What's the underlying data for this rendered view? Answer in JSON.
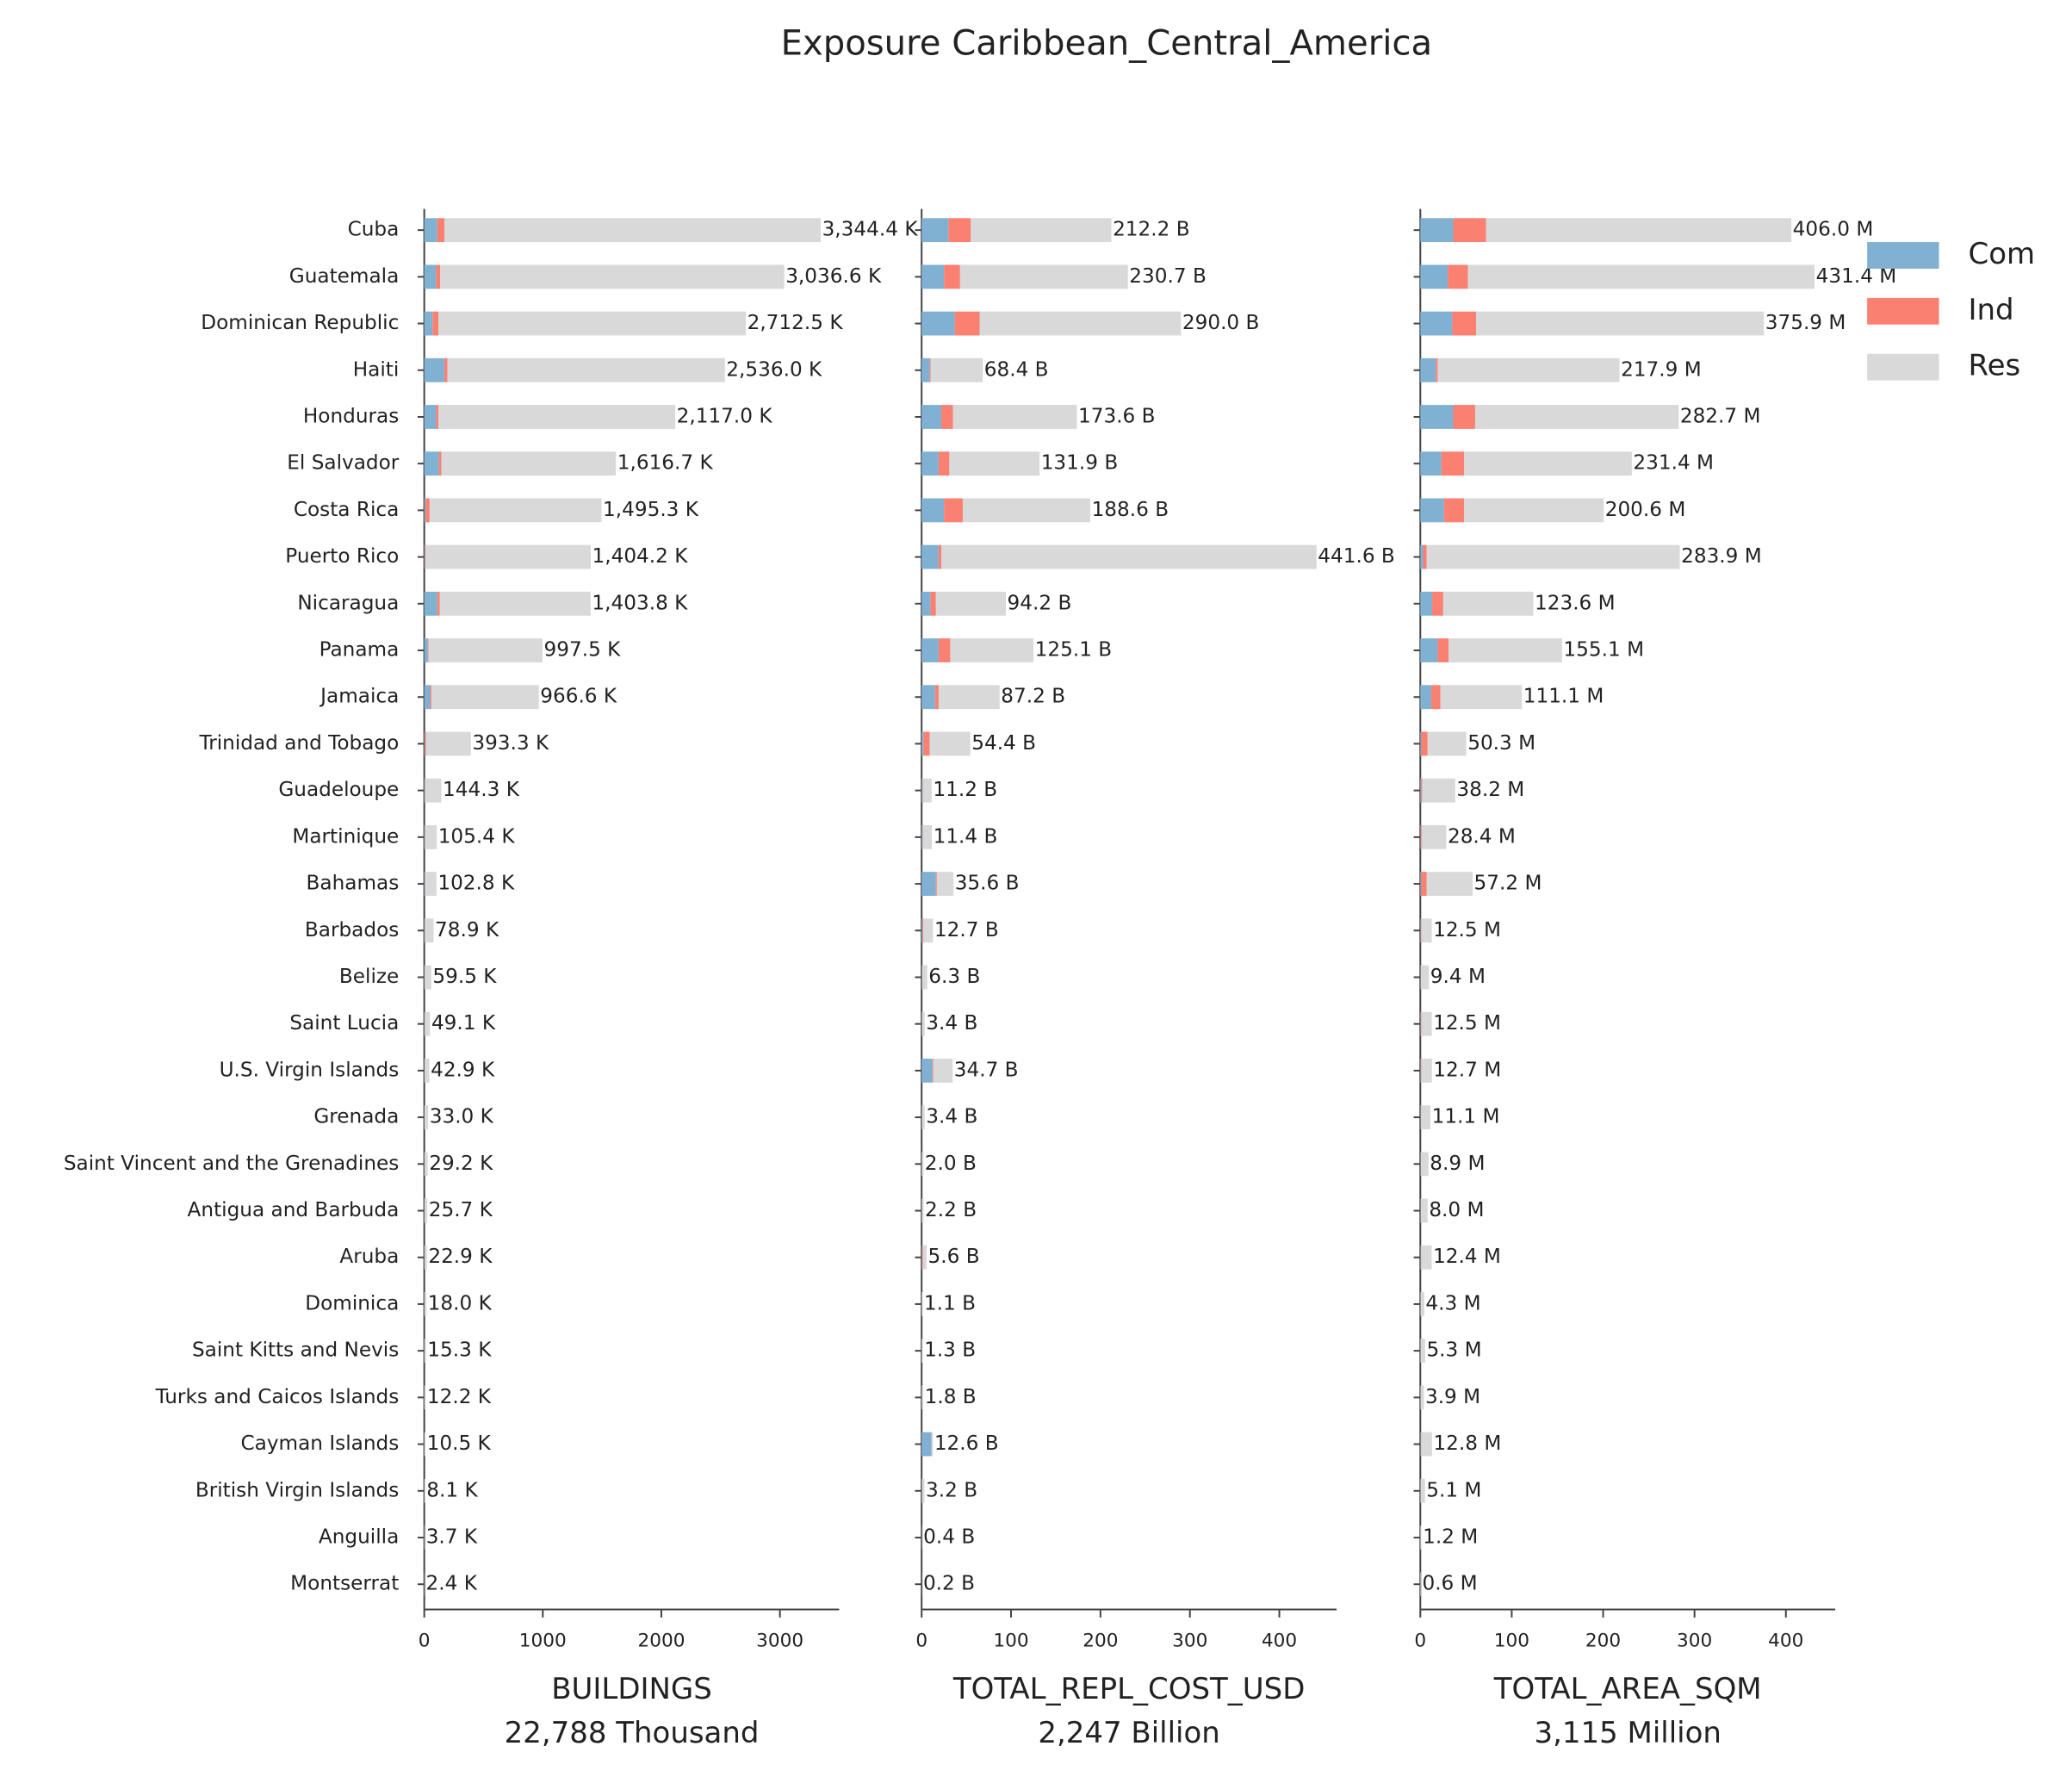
{
  "chart_data": {
    "type": "bar",
    "orientation": "horizontal",
    "stacked": true,
    "title": "Exposure Caribbean_Central_America",
    "categories": [
      "Cuba",
      "Guatemala",
      "Dominican Republic",
      "Haiti",
      "Honduras",
      "El Salvador",
      "Costa Rica",
      "Puerto Rico",
      "Nicaragua",
      "Panama",
      "Jamaica",
      "Trinidad and Tobago",
      "Guadeloupe",
      "Martinique",
      "Bahamas",
      "Barbados",
      "Belize",
      "Saint Lucia",
      "U.S. Virgin Islands",
      "Grenada",
      "Saint Vincent and the Grenadines",
      "Antigua and Barbuda",
      "Aruba",
      "Dominica",
      "Saint Kitts and Nevis",
      "Turks and Caicos Islands",
      "Cayman Islands",
      "British Virgin Islands",
      "Anguilla",
      "Montserrat"
    ],
    "series": [
      {
        "name": "Com",
        "color": "#80b1d3"
      },
      {
        "name": "Ind",
        "color": "#fa8072"
      },
      {
        "name": "Res",
        "color": "#d9d9d9"
      }
    ],
    "legend": "upper right",
    "panels": [
      {
        "xlabel": "BUILDINGS",
        "subtitle": "22,788 Thousand",
        "xlim": [
          0,
          3500
        ],
        "xticks": [
          0,
          1000,
          2000,
          3000
        ],
        "values": [
          [
            110,
            100,
            70,
            170,
            100,
            125,
            10,
            5,
            110,
            30,
            50,
            5,
            3,
            3,
            5,
            3,
            2,
            2,
            2,
            1,
            1,
            1,
            1,
            1,
            1,
            1,
            1,
            0.5,
            0.2,
            0.1
          ],
          [
            60,
            35,
            50,
            25,
            20,
            20,
            35,
            5,
            20,
            5,
            10,
            10,
            2,
            2,
            2,
            1,
            1,
            1,
            1,
            1,
            1,
            1,
            1,
            0.5,
            0.5,
            0.3,
            0.2,
            0.2,
            0.1,
            0.1
          ],
          [
            3174.4,
            2901.6,
            2592.5,
            2341,
            1997,
            1471.7,
            1450.3,
            1394.2,
            1273.8,
            962.5,
            906.6,
            378.3,
            139.3,
            100.4,
            95.8,
            74.9,
            56.5,
            46.1,
            39.9,
            31,
            27.2,
            23.7,
            20.9,
            16.5,
            13.8,
            10.9,
            9.3,
            7.4,
            3.4,
            2.2
          ]
        ],
        "totals": [
          3344.4,
          3036.6,
          2712.5,
          2536.0,
          2117.0,
          1616.7,
          1495.3,
          1404.2,
          1403.8,
          997.5,
          966.6,
          393.3,
          144.3,
          105.4,
          102.8,
          78.9,
          59.5,
          49.1,
          42.9,
          33.0,
          29.2,
          25.7,
          22.9,
          18.0,
          15.3,
          12.2,
          10.5,
          8.1,
          3.7,
          2.4
        ],
        "total_labels": [
          "3,344.4 K",
          "3,036.6 K",
          "2,712.5 K",
          "2,536.0 K",
          "2,117.0 K",
          "1,616.7 K",
          "1,495.3 K",
          "1,404.2 K",
          "1,403.8 K",
          "997.5 K",
          "966.6 K",
          "393.3 K",
          "144.3 K",
          "105.4 K",
          "102.8 K",
          "78.9 K",
          "59.5 K",
          "49.1 K",
          "42.9 K",
          "33.0 K",
          "29.2 K",
          "25.7 K",
          "22.9 K",
          "18.0 K",
          "15.3 K",
          "12.2 K",
          "10.5 K",
          "8.1 K",
          "3.7 K",
          "2.4 K"
        ]
      },
      {
        "xlabel": "TOTAL_REPL_COST_USD",
        "subtitle": "2,247 Billion",
        "xlim": [
          0,
          464
        ],
        "xticks": [
          0,
          100,
          200,
          300,
          400
        ],
        "values": [
          [
            30,
            25,
            37,
            9,
            22,
            19,
            25,
            19,
            10,
            19,
            15,
            2,
            1,
            1,
            16,
            1,
            0.5,
            0.3,
            12,
            0.3,
            0.2,
            0.2,
            0.5,
            0.1,
            0.1,
            0.2,
            11,
            0.3,
            0.05,
            0.02
          ],
          [
            25,
            18,
            28,
            1,
            13,
            12,
            21,
            3,
            6,
            13,
            4,
            7,
            0.5,
            0.5,
            1,
            1,
            0.3,
            0.2,
            1,
            0.2,
            0.1,
            0.1,
            1,
            0.1,
            0.1,
            0.1,
            0.2,
            0.2,
            0.05,
            0.02
          ],
          [
            157.2,
            187.7,
            225,
            58.4,
            138.6,
            100.9,
            142.6,
            419.6,
            78.2,
            93.1,
            68.2,
            45.4,
            9.7,
            9.9,
            18.6,
            10.7,
            5.5,
            2.9,
            21.7,
            2.9,
            1.7,
            1.9,
            4.1,
            0.9,
            1.1,
            1.5,
            1.4,
            2.7,
            0.3,
            0.16
          ]
        ],
        "totals": [
          212.2,
          230.7,
          290.0,
          68.4,
          173.6,
          131.9,
          188.6,
          441.6,
          94.2,
          125.1,
          87.2,
          54.4,
          11.2,
          11.4,
          35.6,
          12.7,
          6.3,
          3.4,
          34.7,
          3.4,
          2.0,
          2.2,
          5.6,
          1.1,
          1.3,
          1.8,
          12.6,
          3.2,
          0.4,
          0.2
        ],
        "total_labels": [
          "212.2 B",
          "230.7 B",
          "290.0 B",
          "68.4 B",
          "173.6 B",
          "131.9 B",
          "188.6 B",
          "441.6 B",
          "94.2 B",
          "125.1 B",
          "87.2 B",
          "54.4 B",
          "11.2 B",
          "11.4 B",
          "35.6 B",
          "12.7 B",
          "6.3 B",
          "3.4 B",
          "34.7 B",
          "3.4 B",
          "2.0 B",
          "2.2 B",
          "5.6 B",
          "1.1 B",
          "1.3 B",
          "1.8 B",
          "12.6 B",
          "3.2 B",
          "0.4 B",
          "0.2 B"
        ]
      },
      {
        "xlabel": "TOTAL_AREA_SQM",
        "subtitle": "3,115 Million",
        "xlim": [
          0,
          454
        ],
        "xticks": [
          0,
          100,
          200,
          300,
          400
        ],
        "values": [
          [
            36,
            30,
            35,
            17,
            36,
            23,
            26,
            3,
            13,
            19,
            12,
            1,
            1,
            0.5,
            1,
            0.5,
            0.3,
            0.5,
            0.5,
            0.5,
            0.3,
            0.3,
            0.5,
            0.2,
            0.2,
            0.2,
            0.5,
            0.2,
            0.05,
            0.02
          ],
          [
            36,
            22,
            26,
            2,
            24,
            25,
            22,
            4,
            12,
            12,
            10,
            7,
            1,
            1,
            6,
            0.5,
            0.3,
            0.5,
            0.5,
            0.3,
            0.3,
            0.3,
            0.3,
            0.1,
            0.1,
            0.1,
            0.3,
            0.1,
            0.05,
            0.02
          ],
          [
            334,
            379.4,
            314.9,
            198.9,
            222.7,
            183.4,
            152.6,
            276.9,
            98.6,
            124.1,
            89.1,
            42.3,
            36.2,
            26.9,
            50.2,
            11.5,
            8.8,
            11.5,
            11.7,
            10.3,
            8.3,
            7.4,
            11.6,
            4.0,
            5.0,
            3.6,
            12.0,
            4.8,
            1.1,
            0.56
          ]
        ],
        "totals": [
          406.0,
          431.4,
          375.9,
          217.9,
          282.7,
          231.4,
          200.6,
          283.9,
          123.6,
          155.1,
          111.1,
          50.3,
          38.2,
          28.4,
          57.2,
          12.5,
          9.4,
          12.5,
          12.7,
          11.1,
          8.9,
          8.0,
          12.4,
          4.3,
          5.3,
          3.9,
          12.8,
          5.1,
          1.2,
          0.6
        ],
        "total_labels": [
          "406.0 M",
          "431.4 M",
          "375.9 M",
          "217.9 M",
          "282.7 M",
          "231.4 M",
          "200.6 M",
          "283.9 M",
          "123.6 M",
          "155.1 M",
          "111.1 M",
          "50.3 M",
          "38.2 M",
          "28.4 M",
          "57.2 M",
          "12.5 M",
          "9.4 M",
          "12.5 M",
          "12.7 M",
          "11.1 M",
          "8.9 M",
          "8.0 M",
          "12.4 M",
          "4.3 M",
          "5.3 M",
          "3.9 M",
          "12.8 M",
          "5.1 M",
          "1.2 M",
          "0.6 M"
        ]
      }
    ]
  }
}
